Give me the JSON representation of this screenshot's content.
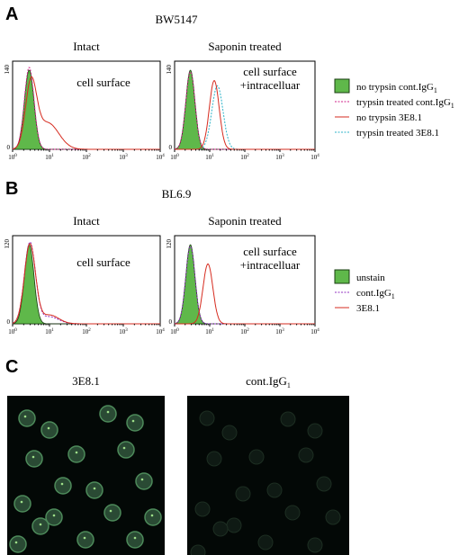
{
  "panel_a": {
    "label": "A",
    "title": "BW5147",
    "plots": [
      {
        "title": "Intact",
        "annotation": [
          "cell surface"
        ],
        "y_max": "140",
        "y_min": "0"
      },
      {
        "title": "Saponin treated",
        "annotation": [
          "cell surface",
          "+intracelluar"
        ],
        "y_max": "140",
        "y_min": "0"
      }
    ],
    "legend": [
      {
        "text": "no trypsin cont.IgG",
        "sub": "1"
      },
      {
        "text": "trypsin treated cont.IgG",
        "sub": "1"
      },
      {
        "text": "no trypsin 3E8.1"
      },
      {
        "text": "trypsin treated 3E8.1"
      }
    ]
  },
  "panel_b": {
    "label": "B",
    "title": "BL6.9",
    "plots": [
      {
        "title": "Intact",
        "annotation": [
          "cell surface"
        ],
        "y_max": "120",
        "y_min": "0"
      },
      {
        "title": "Saponin treated",
        "annotation": [
          "cell surface",
          "+intracelluar"
        ],
        "y_max": "120",
        "y_min": "0"
      }
    ],
    "legend": [
      {
        "text": "unstain"
      },
      {
        "text": "cont.IgG",
        "sub": "1"
      },
      {
        "text": "3E8.1"
      }
    ]
  },
  "x_ticks": [
    {
      "base": "10",
      "exp": "0"
    },
    {
      "base": "10",
      "exp": "1"
    },
    {
      "base": "10",
      "exp": "2"
    },
    {
      "base": "10",
      "exp": "3"
    },
    {
      "base": "10",
      "exp": "4"
    }
  ],
  "panel_c": {
    "label": "C",
    "images": [
      {
        "title": "3E8.1"
      },
      {
        "title": "cont.IgG",
        "sub": "1"
      }
    ]
  }
}
